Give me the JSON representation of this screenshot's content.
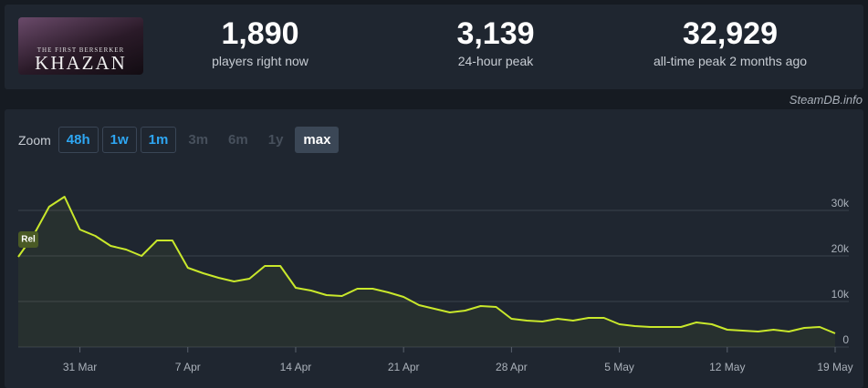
{
  "game": {
    "subtitle": "THE FIRST BERSERKER",
    "title": "KHAZAN"
  },
  "stats": [
    {
      "value": "1,890",
      "label": "players right now"
    },
    {
      "value": "3,139",
      "label": "24-hour peak"
    },
    {
      "value": "32,929",
      "label": "all-time peak 2 months ago"
    }
  ],
  "source": "SteamDB.info",
  "zoom": {
    "label": "Zoom",
    "options": [
      "48h",
      "1w",
      "1m",
      "3m",
      "6m",
      "1y",
      "max"
    ]
  },
  "chart_data": {
    "type": "line",
    "annotation": "Rel",
    "x": [
      "27 Mar",
      "28 Mar",
      "29 Mar",
      "30 Mar",
      "31 Mar",
      "1 Apr",
      "2 Apr",
      "3 Apr",
      "4 Apr",
      "5 Apr",
      "6 Apr",
      "7 Apr",
      "8 Apr",
      "9 Apr",
      "10 Apr",
      "11 Apr",
      "12 Apr",
      "13 Apr",
      "14 Apr",
      "15 Apr",
      "16 Apr",
      "17 Apr",
      "18 Apr",
      "19 Apr",
      "20 Apr",
      "21 Apr",
      "22 Apr",
      "23 Apr",
      "24 Apr",
      "25 Apr",
      "26 Apr",
      "27 Apr",
      "28 Apr",
      "29 Apr",
      "30 Apr",
      "1 May",
      "2 May",
      "3 May",
      "4 May",
      "5 May",
      "6 May",
      "7 May",
      "8 May",
      "9 May",
      "10 May",
      "11 May",
      "12 May",
      "13 May",
      "14 May",
      "15 May",
      "16 May",
      "17 May",
      "18 May",
      "19 May"
    ],
    "series": [
      {
        "name": "Players",
        "color": "#c9e82b",
        "values": [
          19800,
          24600,
          30800,
          33000,
          25800,
          24400,
          22200,
          21400,
          20000,
          23400,
          23400,
          17400,
          16200,
          15200,
          14400,
          15000,
          17800,
          17800,
          13000,
          12400,
          11400,
          11200,
          12800,
          12800,
          12000,
          11000,
          9200,
          8400,
          7600,
          8000,
          9000,
          8800,
          6200,
          5800,
          5600,
          6200,
          5800,
          6400,
          6400,
          5000,
          4600,
          4400,
          4400,
          4400,
          5400,
          5000,
          3800,
          3600,
          3400,
          3800,
          3400,
          4200,
          4400,
          3000
        ]
      }
    ],
    "xlim": [
      "27 Mar",
      "19 May"
    ],
    "xticks": [
      "31 Mar",
      "7 Apr",
      "14 Apr",
      "21 Apr",
      "28 Apr",
      "5 May",
      "12 May",
      "19 May"
    ],
    "ylim": [
      0,
      39000
    ],
    "yticks": [
      0,
      {
        "value": 10000,
        "label": "10k"
      },
      {
        "value": 20000,
        "label": "20k"
      },
      {
        "value": 30000,
        "label": "30k"
      }
    ],
    "grid": true
  }
}
